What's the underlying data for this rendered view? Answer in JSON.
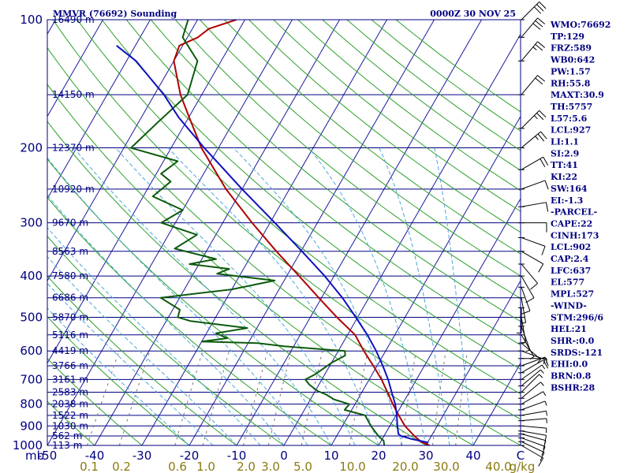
{
  "header": {
    "station": "MMVR (76692) Sounding",
    "time": "0000Z 30 NOV 25"
  },
  "colors": {
    "frame": "#000080",
    "isotherm": "#1a1aa0",
    "dry_adiabat": "#2ca02c",
    "moist_adiabat": "#4aa8d8",
    "mixing_ratio": "#777777",
    "temperature": "#b00000",
    "dewpoint": "#0d5a0d",
    "parcel": "#1010c0",
    "wind_barb": "#000000",
    "mixing_label": "#8a7a10"
  },
  "chart_data": {
    "type": "line",
    "title": "MMVR (76692) Sounding",
    "subtitle": "0000Z 30 NOV 25",
    "y_axis": {
      "label": "mb",
      "scale": "log",
      "range": [
        1000,
        100
      ],
      "ticks": [
        "100",
        "200",
        "300",
        "400",
        "500",
        "600",
        "700",
        "800",
        "900",
        "1000"
      ]
    },
    "x_axis": {
      "label": "C",
      "range": [
        -50,
        50
      ],
      "ticks": [
        "-50",
        "-40",
        "-30",
        "-20",
        "-10",
        "0",
        "10",
        "20",
        "30",
        "40"
      ]
    },
    "mixing_ratio_axis": {
      "label": "g/kg",
      "ticks": [
        "0.1",
        "0.2",
        "0.6",
        "1.0",
        "2.0",
        "3.0",
        "5.0",
        "10.0",
        "20.0",
        "30.0",
        "40.0"
      ]
    },
    "heights": [
      {
        "p": 100,
        "label": "16490 m"
      },
      {
        "p": 150,
        "label": "14150 m"
      },
      {
        "p": 200,
        "label": "12370 m"
      },
      {
        "p": 250,
        "label": "10920 m"
      },
      {
        "p": 300,
        "label": "9670 m"
      },
      {
        "p": 350,
        "label": "8563 m"
      },
      {
        "p": 400,
        "label": "7580 m"
      },
      {
        "p": 450,
        "label": "6686 m"
      },
      {
        "p": 500,
        "label": "5870 m"
      },
      {
        "p": 550,
        "label": "5116 m"
      },
      {
        "p": 600,
        "label": "4419 m"
      },
      {
        "p": 650,
        "label": "3766 m"
      },
      {
        "p": 700,
        "label": "3161 m"
      },
      {
        "p": 750,
        "label": "2583 m"
      },
      {
        "p": 800,
        "label": "2038 m"
      },
      {
        "p": 850,
        "label": "1522 m"
      },
      {
        "p": 900,
        "label": "1030 m"
      },
      {
        "p": 950,
        "label": "562 m"
      },
      {
        "p": 1000,
        "label": "113 m"
      }
    ],
    "series": [
      {
        "key": "temperature",
        "points": [
          [
            1000,
            30.8
          ],
          [
            980,
            28.5
          ],
          [
            950,
            26.4
          ],
          [
            900,
            23.2
          ],
          [
            850,
            20.6
          ],
          [
            800,
            18.0
          ],
          [
            750,
            15.4
          ],
          [
            700,
            12.6
          ],
          [
            650,
            9.2
          ],
          [
            600,
            5.4
          ],
          [
            550,
            1.6
          ],
          [
            500,
            -4.4
          ],
          [
            450,
            -10.6
          ],
          [
            400,
            -17.4
          ],
          [
            350,
            -25.2
          ],
          [
            300,
            -33.8
          ],
          [
            250,
            -43.4
          ],
          [
            200,
            -53.6
          ],
          [
            170,
            -59.8
          ],
          [
            150,
            -64.5
          ],
          [
            125,
            -70.0
          ],
          [
            115,
            -70.7
          ],
          [
            110,
            -67.8
          ],
          [
            105,
            -66.5
          ],
          [
            100,
            -61.8
          ]
        ]
      },
      {
        "key": "dewpoint",
        "points": [
          [
            1000,
            21.2
          ],
          [
            975,
            20.5
          ],
          [
            950,
            18.8
          ],
          [
            900,
            16.0
          ],
          [
            850,
            13.5
          ],
          [
            825,
            8.5
          ],
          [
            800,
            8.8
          ],
          [
            780,
            5.0
          ],
          [
            760,
            2.8
          ],
          [
            745,
            0.5
          ],
          [
            720,
            -2.0
          ],
          [
            700,
            -3.5
          ],
          [
            680,
            -2.0
          ],
          [
            640,
            0.0
          ],
          [
            615,
            2.0
          ],
          [
            600,
            1.4
          ],
          [
            585,
            -12.0
          ],
          [
            575,
            -18.0
          ],
          [
            570,
            -30.0
          ],
          [
            560,
            -25.0
          ],
          [
            545,
            -28.0
          ],
          [
            530,
            -22.0
          ],
          [
            510,
            -35.0
          ],
          [
            500,
            -38.0
          ],
          [
            480,
            -38.5
          ],
          [
            450,
            -44.0
          ],
          [
            430,
            -30.0
          ],
          [
            410,
            -22.0
          ],
          [
            395,
            -35.0
          ],
          [
            385,
            -33.0
          ],
          [
            375,
            -42.0
          ],
          [
            365,
            -37.0
          ],
          [
            345,
            -47.0
          ],
          [
            320,
            -44.0
          ],
          [
            300,
            -53.0
          ],
          [
            280,
            -50.0
          ],
          [
            260,
            -58.0
          ],
          [
            240,
            -56.0
          ],
          [
            230,
            -59.0
          ],
          [
            215,
            -57.0
          ],
          [
            200,
            -68.5
          ],
          [
            175,
            -66.0
          ],
          [
            150,
            -63.0
          ],
          [
            125,
            -65.0
          ],
          [
            110,
            -71.0
          ],
          [
            100,
            -72.0
          ]
        ]
      },
      {
        "key": "parcel",
        "points": [
          [
            985,
            30.2
          ],
          [
            965,
            26.0
          ],
          [
            950,
            23.6
          ],
          [
            940,
            22.8
          ],
          [
            900,
            21.6
          ],
          [
            850,
            20.2
          ],
          [
            800,
            18.5
          ],
          [
            750,
            16.3
          ],
          [
            700,
            14.0
          ],
          [
            650,
            11.2
          ],
          [
            600,
            8.0
          ],
          [
            550,
            4.2
          ],
          [
            500,
            -0.4
          ],
          [
            450,
            -5.6
          ],
          [
            400,
            -12.0
          ],
          [
            350,
            -19.8
          ],
          [
            300,
            -29.0
          ],
          [
            250,
            -40.0
          ],
          [
            200,
            -53.0
          ],
          [
            170,
            -62.0
          ],
          [
            150,
            -68.0
          ],
          [
            125,
            -78.0
          ],
          [
            115,
            -84.0
          ]
        ]
      }
    ],
    "wind_barbs": [
      {
        "p": 1000,
        "dir": 120,
        "spd": 12
      },
      {
        "p": 980,
        "dir": 115,
        "spd": 14
      },
      {
        "p": 960,
        "dir": 110,
        "spd": 12
      },
      {
        "p": 940,
        "dir": 105,
        "spd": 10
      },
      {
        "p": 925,
        "dir": 100,
        "spd": 10
      },
      {
        "p": 900,
        "dir": 95,
        "spd": 8
      },
      {
        "p": 875,
        "dir": 85,
        "spd": 6
      },
      {
        "p": 850,
        "dir": 80,
        "spd": 5
      },
      {
        "p": 825,
        "dir": 70,
        "spd": 5
      },
      {
        "p": 800,
        "dir": 60,
        "spd": 5
      },
      {
        "p": 775,
        "dir": 50,
        "spd": 5
      },
      {
        "p": 750,
        "dir": 45,
        "spd": 5
      },
      {
        "p": 725,
        "dir": 50,
        "spd": 8
      },
      {
        "p": 700,
        "dir": 55,
        "spd": 8
      },
      {
        "p": 675,
        "dir": 60,
        "spd": 10
      },
      {
        "p": 650,
        "dir": 70,
        "spd": 10
      },
      {
        "p": 625,
        "dir": 90,
        "spd": 8
      },
      {
        "p": 600,
        "dir": 110,
        "spd": 5
      },
      {
        "p": 575,
        "dir": 130,
        "spd": 5
      },
      {
        "p": 550,
        "dir": 150,
        "spd": 5
      },
      {
        "p": 525,
        "dir": 160,
        "spd": 5
      },
      {
        "p": 500,
        "dir": 170,
        "spd": 5
      },
      {
        "p": 475,
        "dir": 180,
        "spd": 5
      },
      {
        "p": 450,
        "dir": 170,
        "spd": 8
      },
      {
        "p": 425,
        "dir": 160,
        "spd": 10
      },
      {
        "p": 400,
        "dir": 150,
        "spd": 10
      },
      {
        "p": 375,
        "dir": 140,
        "spd": 10
      },
      {
        "p": 350,
        "dir": 120,
        "spd": 12
      },
      {
        "p": 325,
        "dir": 110,
        "spd": 10
      },
      {
        "p": 300,
        "dir": 90,
        "spd": 10
      },
      {
        "p": 275,
        "dir": 80,
        "spd": 10
      },
      {
        "p": 250,
        "dir": 70,
        "spd": 10
      },
      {
        "p": 225,
        "dir": 60,
        "spd": 20
      },
      {
        "p": 200,
        "dir": 50,
        "spd": 25
      },
      {
        "p": 180,
        "dir": 45,
        "spd": 25
      },
      {
        "p": 150,
        "dir": 40,
        "spd": 20
      },
      {
        "p": 125,
        "dir": 40,
        "spd": 25
      },
      {
        "p": 110,
        "dir": 40,
        "spd": 30
      },
      {
        "p": 100,
        "dir": 45,
        "spd": 30
      }
    ]
  },
  "indices": [
    "WMO:76692",
    "TP:129",
    "FRZ:589",
    "WB0:642",
    "PW:1.57",
    "RH:55.8",
    "MAXT:30.9",
    "TH:5757",
    "L57:5.6",
    "LCL:927",
    "LI:1.1",
    "SI:2.9",
    "TT:41",
    "KI:22",
    "SW:164",
    "EI:-1.3",
    "-PARCEL-",
    "CAPE:22",
    "CINH:173",
    "LCL:902",
    "CAP:2.4",
    "LFC:637",
    "EL:577",
    "MPL:527",
    "-WIND-",
    "STM:296/6",
    "HEL:21",
    "SHR-:0.0",
    "SRDS:-121",
    "EHI:0.0",
    "BRN:0.8",
    "BSHR:28"
  ]
}
